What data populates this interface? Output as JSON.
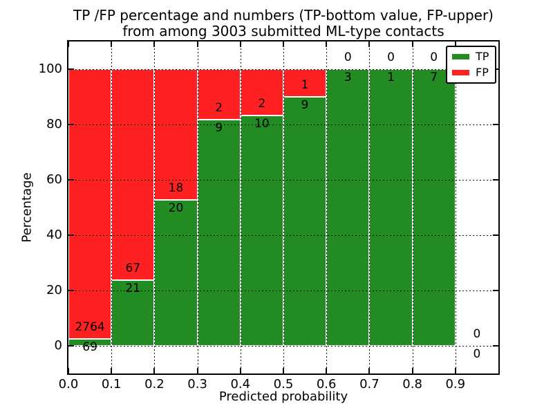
{
  "chart_data": {
    "type": "bar",
    "stacked": true,
    "normalization": "each bin scaled so TP%+FP% = 100 (empty bin drawn as nothing)",
    "title": "TP /FP percentage and numbers (TP-bottom value, FP-upper)\nfrom among 3003 submitted ML-type contacts",
    "title_line1": "TP /FP percentage and numbers (TP-bottom value, FP-upper)",
    "title_line2": "from among 3003 submitted ML-type contacts",
    "xlabel": "Predicted probability",
    "ylabel": "Percentage",
    "total_submitted": 3003,
    "xlim": [
      0.0,
      1.0
    ],
    "ylim": [
      -10,
      110
    ],
    "grid": true,
    "grid_style": "dotted",
    "xticks": [
      {
        "v": 0.0,
        "label": "0.0"
      },
      {
        "v": 0.1,
        "label": "0.1"
      },
      {
        "v": 0.2,
        "label": "0.2"
      },
      {
        "v": 0.3,
        "label": "0.3"
      },
      {
        "v": 0.4,
        "label": "0.4"
      },
      {
        "v": 0.5,
        "label": "0.5"
      },
      {
        "v": 0.6,
        "label": "0.6"
      },
      {
        "v": 0.7,
        "label": "0.7"
      },
      {
        "v": 0.8,
        "label": "0.8"
      },
      {
        "v": 0.9,
        "label": "0.9"
      }
    ],
    "yticks": [
      {
        "v": 0,
        "label": "0"
      },
      {
        "v": 20,
        "label": "20"
      },
      {
        "v": 40,
        "label": "40"
      },
      {
        "v": 60,
        "label": "60"
      },
      {
        "v": 80,
        "label": "80"
      },
      {
        "v": 100,
        "label": "100"
      }
    ],
    "legend": [
      {
        "label": "TP",
        "color": "#228b22"
      },
      {
        "label": "FP",
        "color": "#ff2121"
      }
    ],
    "legend_position": "upper-right",
    "bar_width": 0.1,
    "bins": [
      {
        "x0": 0.0,
        "x1": 0.1,
        "tp": 69,
        "fp": 2764,
        "tp_pct": 2.44,
        "fp_pct": 97.56
      },
      {
        "x0": 0.1,
        "x1": 0.2,
        "tp": 21,
        "fp": 67,
        "tp_pct": 23.86,
        "fp_pct": 76.14
      },
      {
        "x0": 0.2,
        "x1": 0.3,
        "tp": 20,
        "fp": 18,
        "tp_pct": 52.63,
        "fp_pct": 47.37
      },
      {
        "x0": 0.3,
        "x1": 0.4,
        "tp": 9,
        "fp": 2,
        "tp_pct": 81.82,
        "fp_pct": 18.18
      },
      {
        "x0": 0.4,
        "x1": 0.5,
        "tp": 10,
        "fp": 2,
        "tp_pct": 83.33,
        "fp_pct": 16.67
      },
      {
        "x0": 0.5,
        "x1": 0.6,
        "tp": 9,
        "fp": 1,
        "tp_pct": 90.0,
        "fp_pct": 10.0
      },
      {
        "x0": 0.6,
        "x1": 0.7,
        "tp": 3,
        "fp": 0,
        "tp_pct": 100.0,
        "fp_pct": 0.0
      },
      {
        "x0": 0.7,
        "x1": 0.8,
        "tp": 1,
        "fp": 0,
        "tp_pct": 100.0,
        "fp_pct": 0.0
      },
      {
        "x0": 0.8,
        "x1": 0.9,
        "tp": 7,
        "fp": 0,
        "tp_pct": 100.0,
        "fp_pct": 0.0
      },
      {
        "x0": 0.9,
        "x1": 1.0,
        "tp": 0,
        "fp": 0,
        "tp_pct": 0.0,
        "fp_pct": 0.0
      }
    ],
    "colors": {
      "tp": "#228b22",
      "fp": "#ff2121",
      "grid": "#000000",
      "bar_edge": "#ffffff",
      "background": "#ffffff"
    }
  }
}
